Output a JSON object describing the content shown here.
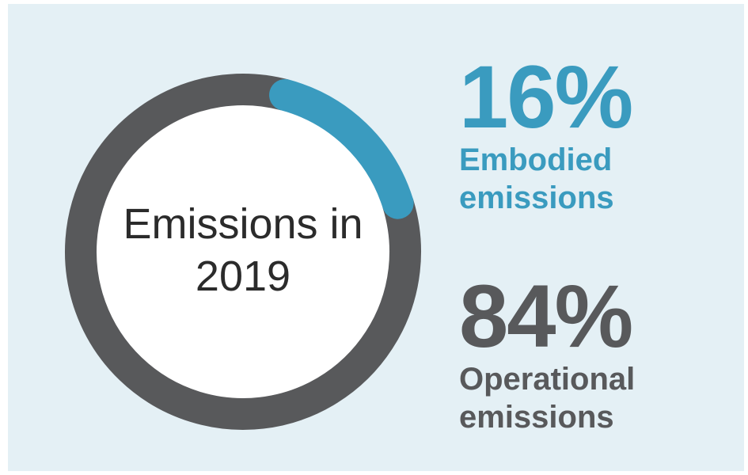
{
  "chart_data": {
    "type": "pie",
    "title": "Emissions in 2019",
    "categories": [
      "Embodied emissions",
      "Operational emissions"
    ],
    "values": [
      16,
      84
    ],
    "value_labels": [
      "16%",
      "84%"
    ],
    "colors": [
      "#3a9bbf",
      "#58595b"
    ]
  }
}
